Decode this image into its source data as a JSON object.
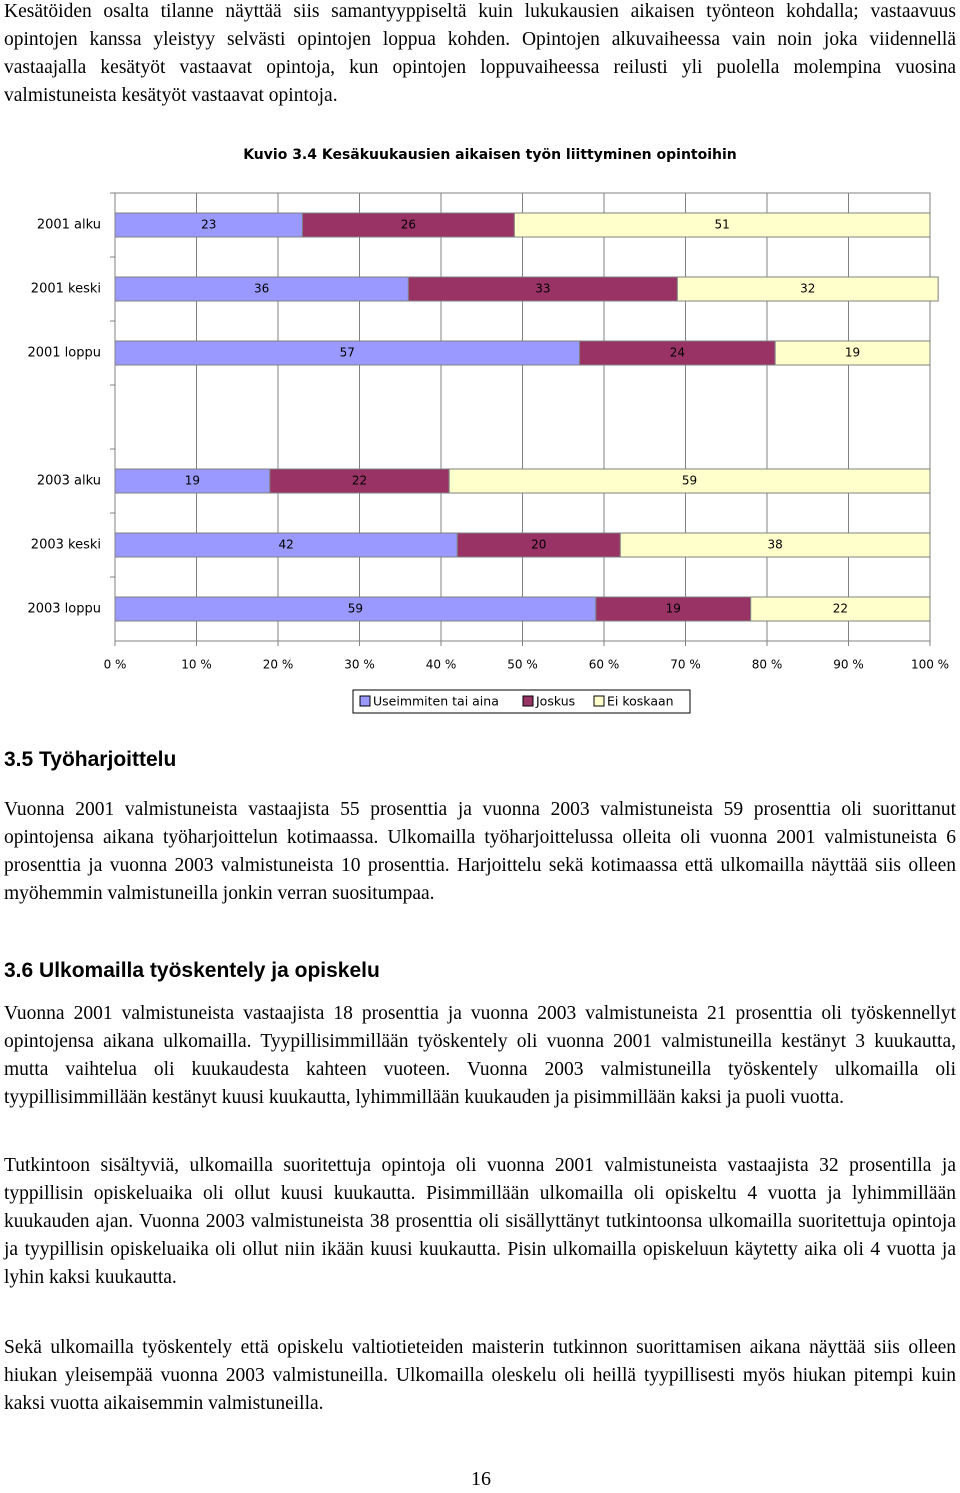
{
  "intro": "Kesätöiden osalta tilanne näyttää siis samantyyppiseltä kuin lukukausien aikaisen työnteon kohdalla; vastaavuus opintojen kanssa yleistyy selvästi opintojen loppua kohden. Opintojen alkuvaiheessa vain noin joka viidennellä vastaajalla kesätyöt vastaavat opintoja, kun opintojen loppuvaiheessa reilusti yli puolella molempina vuosina valmistuneista kesätyöt vastaavat opintoja.",
  "chart_data": {
    "type": "stacked-bar-horizontal",
    "title": "Kuvio 3.4 Kesäkuukausien aikaisen työn liittyminen opintoihin",
    "categories": [
      "2001 alku",
      "2001 keski",
      "2001 loppu",
      null,
      "2003 alku",
      "2003 keski",
      "2003 loppu"
    ],
    "series": [
      {
        "name": "Useimmiten tai aina",
        "color": "#9999ff",
        "values": [
          23,
          36,
          57,
          null,
          19,
          42,
          59
        ]
      },
      {
        "name": "Joskus",
        "color": "#993366",
        "values": [
          26,
          33,
          24,
          null,
          22,
          20,
          19
        ]
      },
      {
        "name": "Ei koskaan",
        "color": "#ffffcc",
        "values": [
          51,
          32,
          19,
          null,
          59,
          38,
          22
        ]
      }
    ],
    "xlim": [
      0,
      100
    ],
    "xticks": [
      {
        "value": 0,
        "label": "0 %"
      },
      {
        "value": 10,
        "label": "10 %"
      },
      {
        "value": 20,
        "label": "20 %"
      },
      {
        "value": 30,
        "label": "30 %"
      },
      {
        "value": 40,
        "label": "40 %"
      },
      {
        "value": 50,
        "label": "50 %"
      },
      {
        "value": 60,
        "label": "60 %"
      },
      {
        "value": 70,
        "label": "70 %"
      },
      {
        "value": 80,
        "label": "80 %"
      },
      {
        "value": 90,
        "label": "90 %"
      },
      {
        "value": 100,
        "label": "100 %"
      }
    ],
    "grid": true,
    "legend": "bottom"
  },
  "sections": [
    {
      "heading": "3.5 Työharjoittelu",
      "paragraphs": [
        "Vuonna 2001 valmistuneista vastaajista 55 prosenttia ja vuonna 2003 valmistuneista 59 prosenttia oli suorittanut opintojensa aikana työharjoittelun kotimaassa. Ulkomailla työharjoittelussa olleita oli vuonna 2001 valmistuneista 6 prosenttia ja vuonna 2003 valmistuneista 10 prosenttia. Harjoittelu sekä kotimaassa että ulkomailla näyttää siis olleen myöhemmin valmistuneilla jonkin verran suositumpaa."
      ]
    },
    {
      "heading": "3.6 Ulkomailla työskentely ja opiskelu",
      "paragraphs": [
        "Vuonna 2001 valmistuneista vastaajista 18 prosenttia ja vuonna 2003 valmistuneista 21 prosenttia oli työskennellyt opintojensa aikana ulkomailla. Tyypillisimmillään työskentely oli vuonna 2001 valmistuneilla kestänyt 3 kuukautta, mutta vaihtelua oli kuukaudesta kahteen vuoteen. Vuonna 2003 valmistuneilla työskentely ulkomailla oli tyypillisimmillään kestänyt kuusi kuukautta, lyhimmillään kuukauden ja pisimmillään kaksi ja puoli vuotta.",
        "Tutkintoon sisältyviä, ulkomailla suoritettuja opintoja oli vuonna 2001 valmistuneista vastaajista 32 prosentilla ja typpillisin opiskeluaika oli ollut kuusi kuukautta. Pisimmillään ulkomailla oli opiskeltu 4 vuotta ja lyhimmillään kuukauden ajan. Vuonna 2003 valmistuneista 38 prosenttia oli sisällyttänyt tutkintoonsa ulkomailla suoritettuja opintoja ja tyypillisin opiskeluaika oli ollut niin ikään kuusi kuukautta. Pisin ulkomailla opiskeluun käytetty aika oli 4 vuotta ja lyhin kaksi kuukautta.",
        "Sekä ulkomailla työskentely että opiskelu valtiotieteiden maisterin tutkinnon suorittamisen aikana näyttää siis olleen hiukan yleisempää vuonna 2003 valmistuneilla. Ulkomailla oleskelu oli heillä tyypillisesti myös hiukan pitempi kuin kaksi vuotta aikaisemmin valmistuneilla."
      ]
    }
  ],
  "page_number": 16
}
